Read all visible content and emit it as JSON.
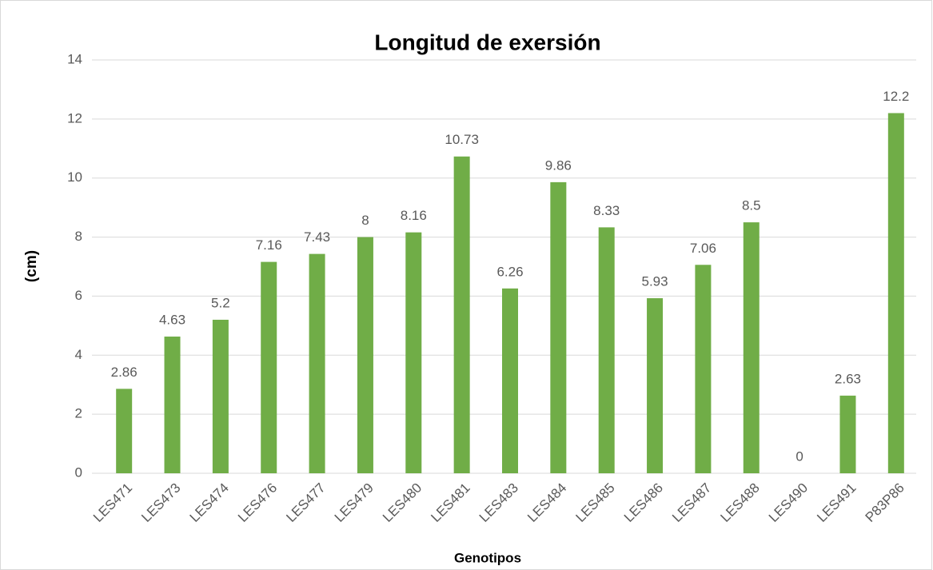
{
  "chart_data": {
    "type": "bar",
    "title": "Longitud de exersión",
    "x_label": "Genotipos",
    "y_label": "(cm)",
    "categories": [
      "LES471",
      "LES473",
      "LES474",
      "LES476",
      "LES477",
      "LES479",
      "LES480",
      "LES481",
      "LES483",
      "LES484",
      "LES485",
      "LES486",
      "LES487",
      "LES488",
      "LES490",
      "LES491",
      "P83P86"
    ],
    "values": [
      2.86,
      4.63,
      5.2,
      7.16,
      7.43,
      8,
      8.16,
      10.73,
      6.26,
      9.86,
      8.33,
      5.93,
      7.06,
      8.5,
      0,
      2.63,
      12.2
    ],
    "color": "#70ad47",
    "ylim": [
      0,
      14
    ],
    "yticks": [
      0,
      2,
      4,
      6,
      8,
      10,
      12,
      14
    ],
    "grid": true
  }
}
